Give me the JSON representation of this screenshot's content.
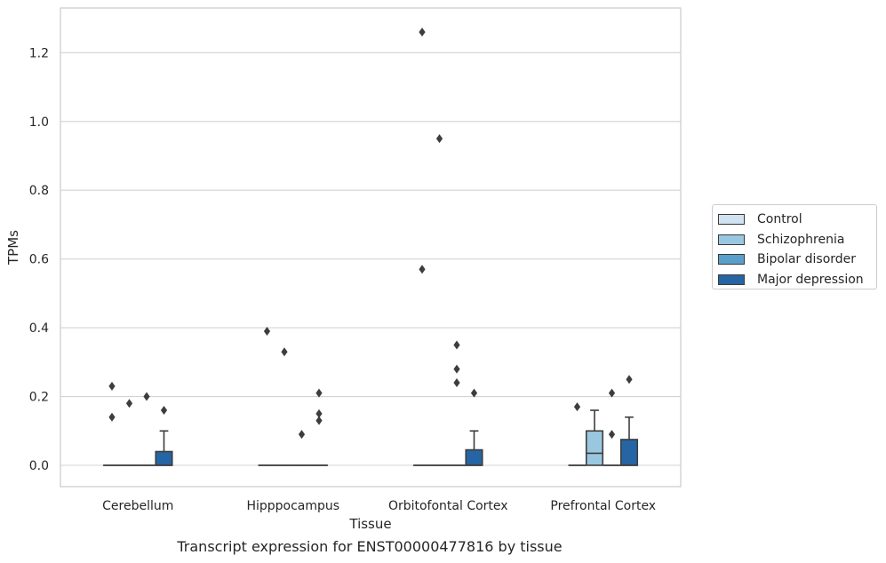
{
  "chart_data": {
    "type": "box",
    "xlabel": "Tissue",
    "ylabel": "TPMs",
    "caption": "Transcript expression for ENST00000477816 by tissue",
    "ylim": [
      -0.062,
      1.33
    ],
    "yticks": [
      "0.0",
      "0.2",
      "0.4",
      "0.6",
      "0.8",
      "1.0",
      "1.2"
    ],
    "grid": "horizontal",
    "legend_position": "right",
    "categories": [
      "Cerebellum",
      "Hipppocampus",
      "Orbitofontal Cortex",
      "Prefrontal Cortex"
    ],
    "series": [
      {
        "name": "Control",
        "color": "#d1e2f2",
        "boxes": [
          {
            "q1": 0,
            "median": 0,
            "q3": 0,
            "whislo": 0,
            "whishi": 0,
            "fliers": [
              0.14,
              0.23
            ]
          },
          {
            "q1": 0,
            "median": 0,
            "q3": 0,
            "whislo": 0,
            "whishi": 0,
            "fliers": [
              0.39
            ]
          },
          {
            "q1": 0,
            "median": 0,
            "q3": 0,
            "whislo": 0,
            "whishi": 0,
            "fliers": [
              0.57,
              1.26
            ]
          },
          {
            "q1": 0,
            "median": 0,
            "q3": 0,
            "whislo": 0,
            "whishi": 0,
            "fliers": [
              0.17
            ]
          }
        ]
      },
      {
        "name": "Schizophrenia",
        "color": "#9ac7e0",
        "boxes": [
          {
            "q1": 0,
            "median": 0,
            "q3": 0,
            "whislo": 0,
            "whishi": 0,
            "fliers": [
              0.18
            ]
          },
          {
            "q1": 0,
            "median": 0,
            "q3": 0,
            "whislo": 0,
            "whishi": 0,
            "fliers": [
              0.33
            ]
          },
          {
            "q1": 0,
            "median": 0,
            "q3": 0,
            "whislo": 0,
            "whishi": 0,
            "fliers": [
              0.95
            ]
          },
          {
            "q1": 0,
            "median": 0.035,
            "q3": 0.1,
            "whislo": 0,
            "whishi": 0.16,
            "fliers": []
          }
        ]
      },
      {
        "name": "Bipolar disorder",
        "color": "#5a9fcb",
        "boxes": [
          {
            "q1": 0,
            "median": 0,
            "q3": 0,
            "whislo": 0,
            "whishi": 0,
            "fliers": [
              0.2
            ]
          },
          {
            "q1": 0,
            "median": 0,
            "q3": 0,
            "whislo": 0,
            "whishi": 0,
            "fliers": [
              0.09
            ]
          },
          {
            "q1": 0,
            "median": 0,
            "q3": 0,
            "whislo": 0,
            "whishi": 0,
            "fliers": [
              0.24,
              0.28,
              0.35
            ]
          },
          {
            "q1": 0,
            "median": 0,
            "q3": 0,
            "whislo": 0,
            "whishi": 0,
            "fliers": [
              0.09,
              0.21
            ]
          }
        ]
      },
      {
        "name": "Major depression",
        "color": "#2565a3",
        "boxes": [
          {
            "q1": 0,
            "median": 0,
            "q3": 0.04,
            "whislo": 0,
            "whishi": 0.1,
            "fliers": [
              0.16
            ]
          },
          {
            "q1": 0,
            "median": 0,
            "q3": 0,
            "whislo": 0,
            "whishi": 0,
            "fliers": [
              0.13,
              0.15,
              0.21
            ]
          },
          {
            "q1": 0,
            "median": 0,
            "q3": 0.045,
            "whislo": 0,
            "whishi": 0.1,
            "fliers": [
              0.21
            ]
          },
          {
            "q1": 0,
            "median": 0,
            "q3": 0.075,
            "whislo": 0,
            "whishi": 0.14,
            "fliers": [
              0.25
            ]
          }
        ]
      }
    ]
  }
}
